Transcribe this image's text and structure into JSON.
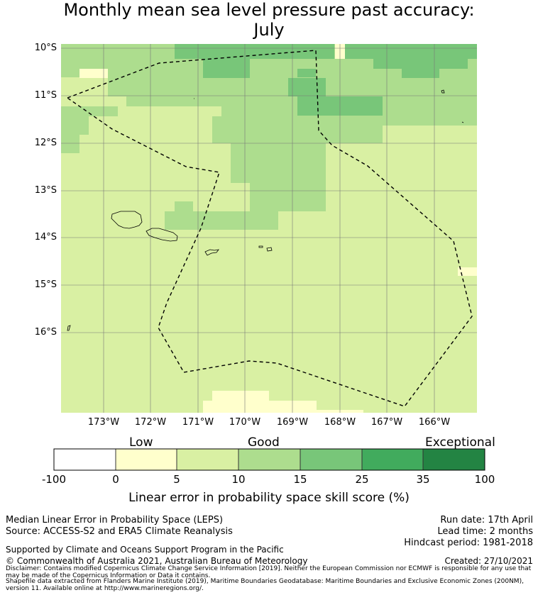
{
  "title_line1": "Monthly mean sea level pressure past accuracy:",
  "title_line2": "July",
  "map": {
    "lat_labels": [
      "10°S",
      "11°S",
      "12°S",
      "13°S",
      "14°S",
      "15°S",
      "16°S"
    ],
    "lon_labels": [
      "173°W",
      "172°W",
      "171°W",
      "170°W",
      "169°W",
      "168°W",
      "167°W",
      "166°W"
    ],
    "region_outline": "dashed boundary",
    "colors": {
      "c0_5": "#ffffcc",
      "c5_10": "#d9f0a3",
      "c10_15": "#addd8e",
      "c15_25": "#78c679",
      "c25_35": "#41ab5d",
      "c35_100": "#238443"
    }
  },
  "colorbar": {
    "category_labels": [
      "Low",
      "Good",
      "Exceptional"
    ],
    "ticks": [
      "-100",
      "0",
      "5",
      "10",
      "15",
      "25",
      "35",
      "100"
    ],
    "colors": [
      "#ffffff",
      "#ffffcc",
      "#d9f0a3",
      "#addd8e",
      "#78c679",
      "#41ab5d",
      "#238443"
    ],
    "title": "Linear error in probability space skill score (%)"
  },
  "footer": {
    "left1": "Median Linear Error in Probability Space (LEPS)",
    "left2": "Source: ACCESS-S2 and ERA5 Climate Reanalysis",
    "right1": "Run date: 17th April",
    "right2": "Lead time: 2 months",
    "right3": "Hindcast period: 1981-2018",
    "support": "Supported by Climate and Oceans Support Program in the Pacific",
    "copyright": "© Commonwealth of Australia 2021, Australian Bureau of Meteorology",
    "created": "Created: 27/10/2021",
    "disclaimer": "Disclaimer: Contains modified Copernicus Climate Change Service Information [2019]. Neither the European Commission nor ECMWF is responsible for any use that may be made of the Copernicus Information or Data it contains.",
    "shapefile": "Shapefile data extracted from Flanders Marine Institute (2019), Maritime Boundaries Geodatabase: Maritime Boundaries and Exclusive Economic Zones (200NM), version 11. Available online at http://www.marineregions.org/."
  }
}
